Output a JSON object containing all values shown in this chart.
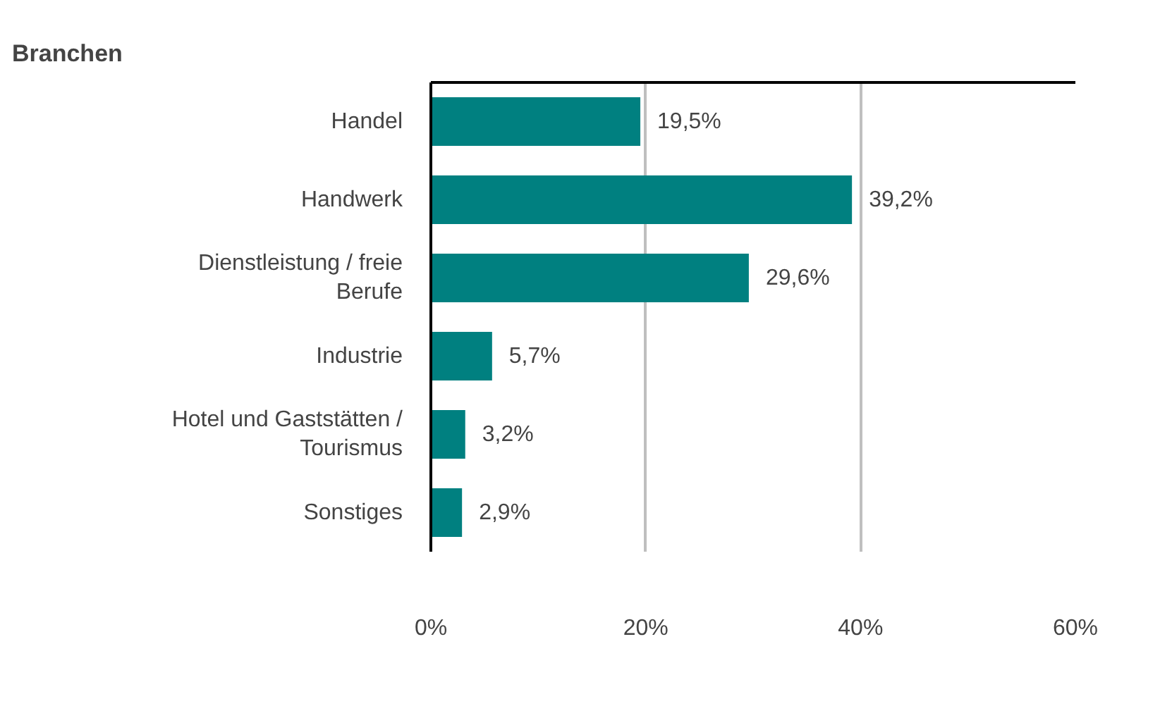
{
  "chart_data": {
    "type": "bar",
    "orientation": "horizontal",
    "title": "Branchen",
    "categories": [
      "Handel",
      "Handwerk",
      "Dienstleistung / freie Berufe",
      "Industrie",
      "Hotel und Gaststätten / Tourismus",
      "Sonstiges"
    ],
    "values": [
      19.5,
      39.2,
      29.6,
      5.7,
      3.2,
      2.9
    ],
    "value_labels": [
      "19,5%",
      "39,2%",
      "29,6%",
      "5,7%",
      "3,2%",
      "2,9%"
    ],
    "color": "#008080",
    "xlim": [
      0,
      60
    ],
    "xticks": [
      {
        "value": 0,
        "label": "0%"
      },
      {
        "value": 20,
        "label": "20%"
      },
      {
        "value": 40,
        "label": "40%"
      },
      {
        "value": 60,
        "label": "60%"
      }
    ],
    "grid": "x"
  }
}
